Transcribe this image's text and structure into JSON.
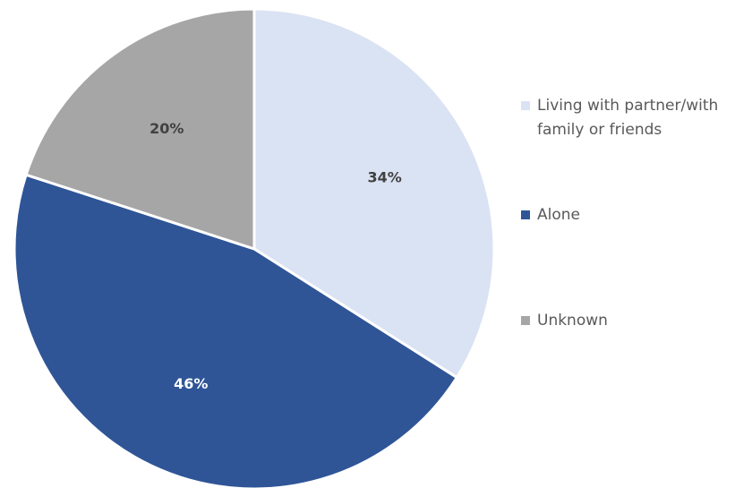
{
  "chart_data": {
    "type": "pie",
    "title": "",
    "categories": [
      "Living with partner/with family or friends",
      "Alone",
      "Unknown"
    ],
    "values": [
      34,
      46,
      20
    ],
    "value_labels": [
      "34%",
      "46%",
      "20%"
    ],
    "colors": [
      "#DAE3F3",
      "#2F5597",
      "#A6A6A6"
    ],
    "label_colors": [
      "#404040",
      "#FFFFFF",
      "#404040"
    ],
    "legend": {
      "placement": "right",
      "entries": [
        {
          "lines": [
            "Living with partner/with",
            "family or friends"
          ],
          "color": "#DAE3F3"
        },
        {
          "lines": [
            "Alone"
          ],
          "color": "#2F5597"
        },
        {
          "lines": [
            "Unknown"
          ],
          "color": "#A6A6A6"
        }
      ]
    }
  }
}
